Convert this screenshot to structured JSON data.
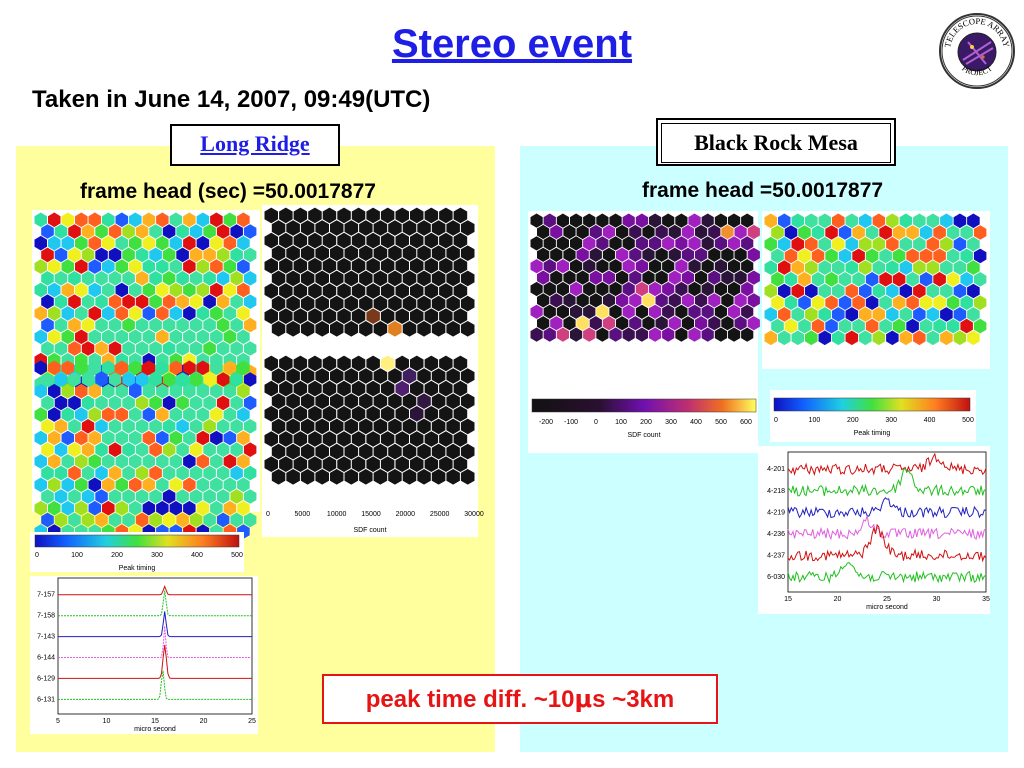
{
  "title": "Stereo event",
  "subtitle": "Taken in June 14, 2007, 09:49(UTC)",
  "logo": {
    "top_text": "TELESCOPE ARRAY",
    "bottom_text": "PROJECT",
    "icon": "telescope-array-logo-icon"
  },
  "colors": {
    "title": "#1e1ee6",
    "left_bg": "#ffff9e",
    "right_bg": "#ccffff",
    "peak": "#e61414"
  },
  "left": {
    "site": "Long Ridge",
    "frame_head": "frame head (sec) =50.0017877",
    "sdf_scale": {
      "ticks": [
        "0",
        "5000",
        "10000",
        "15000",
        "20000",
        "25000",
        "30000"
      ],
      "label": "SDF count"
    },
    "timing_scale": {
      "ticks": [
        "0",
        "100",
        "200",
        "300",
        "400",
        "500"
      ],
      "label": "Peak timing"
    },
    "waveform": {
      "channels": [
        "7-157",
        "7-158",
        "7-143",
        "6-144",
        "6-129",
        "6-131"
      ],
      "x_ticks": [
        "5",
        "10",
        "15",
        "20",
        "25"
      ],
      "xlabel": "micro second"
    }
  },
  "right": {
    "site": "Black Rock Mesa",
    "frame_head": "frame head =50.0017877",
    "sdf_scale": {
      "ticks": [
        "-200",
        "-100",
        "0",
        "100",
        "200",
        "300",
        "400",
        "500",
        "600"
      ],
      "label": "SDF count"
    },
    "timing_scale": {
      "ticks": [
        "0",
        "100",
        "200",
        "300",
        "400",
        "500"
      ],
      "label": "Peak timing"
    },
    "waveform": {
      "channels": [
        "4-201",
        "4-218",
        "4-219",
        "4-236",
        "4-237",
        "6-030"
      ],
      "x_ticks": [
        "15",
        "20",
        "25",
        "30",
        "35"
      ],
      "xlabel": "micro second"
    }
  },
  "peak_note": {
    "text_a": "peak time diff. ~10",
    "mu": "μ",
    "text_b": "s ~3km"
  }
}
